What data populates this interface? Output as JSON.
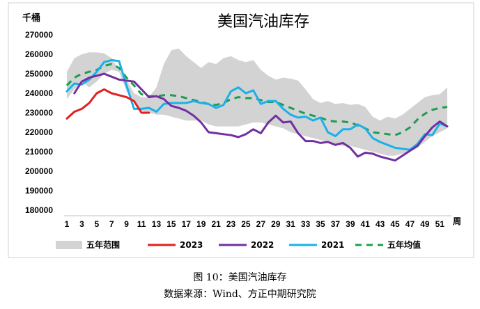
{
  "caption": {
    "figure": "图 10：美国汽油库存",
    "source": "数据来源：Wind、方正中期研究院"
  },
  "chart_data": {
    "type": "line",
    "title": "美国汽油库存",
    "ylabel": "千桶",
    "xlabel": "周",
    "ylim": [
      180000,
      270000
    ],
    "yticks": [
      180000,
      190000,
      200000,
      210000,
      220000,
      230000,
      240000,
      250000,
      260000,
      270000
    ],
    "xlim": [
      1,
      52
    ],
    "xticks": [
      1,
      3,
      5,
      7,
      9,
      11,
      13,
      15,
      17,
      19,
      21,
      23,
      25,
      27,
      29,
      31,
      33,
      35,
      37,
      39,
      41,
      43,
      45,
      47,
      49,
      51
    ],
    "legend_position": "bottom",
    "range_band": {
      "name": "五年范围",
      "color": "#d3d3d3",
      "x": [
        1,
        2,
        3,
        4,
        5,
        6,
        7,
        8,
        9,
        10,
        11,
        12,
        13,
        14,
        15,
        16,
        17,
        18,
        19,
        20,
        21,
        22,
        23,
        24,
        25,
        26,
        27,
        28,
        29,
        30,
        31,
        32,
        33,
        34,
        35,
        36,
        37,
        38,
        39,
        40,
        41,
        42,
        43,
        44,
        45,
        46,
        47,
        48,
        49,
        50,
        51,
        52
      ],
      "high": [
        251000,
        258000,
        260000,
        261000,
        261000,
        260500,
        258000,
        252000,
        247000,
        240000,
        238000,
        238000,
        243000,
        255000,
        262000,
        263000,
        259000,
        256000,
        253000,
        256000,
        255000,
        258000,
        259000,
        257000,
        256000,
        257000,
        252000,
        249000,
        247000,
        248000,
        247500,
        246500,
        242000,
        237000,
        235000,
        236000,
        234500,
        235000,
        234000,
        234500,
        233000,
        228000,
        226000,
        228000,
        227000,
        229000,
        232000,
        235000,
        238000,
        239000,
        239500,
        243000
      ],
      "low": [
        237000,
        242000,
        246000,
        243000,
        246000,
        250000,
        252000,
        251000,
        241000,
        236000,
        231000,
        230000,
        229000,
        229000,
        228000,
        227000,
        226000,
        226000,
        226000,
        224000,
        223000,
        223000,
        223000,
        223000,
        224000,
        225000,
        225000,
        224000,
        223000,
        222000,
        220000,
        219000,
        218000,
        217000,
        216000,
        215000,
        214000,
        213000,
        213000,
        212000,
        211000,
        210000,
        209000,
        208000,
        208000,
        209000,
        210000,
        212000,
        215000,
        218000,
        220000,
        222000
      ]
    },
    "series": [
      {
        "name": "2023",
        "color": "#e02020",
        "dash": false,
        "x": [
          1,
          2,
          3,
          4,
          5,
          6,
          7,
          8,
          9,
          10,
          11,
          12
        ],
        "values": [
          227000,
          230500,
          232000,
          235000,
          240000,
          242000,
          240000,
          239000,
          238000,
          236000,
          230000,
          230000
        ]
      },
      {
        "name": "2022",
        "color": "#7030a0",
        "dash": false,
        "x": [
          2,
          3,
          4,
          5,
          6,
          7,
          8,
          9,
          10,
          11,
          12,
          13,
          14,
          15,
          16,
          17,
          18,
          19,
          20,
          21,
          22,
          23,
          24,
          25,
          26,
          27,
          28,
          29,
          30,
          31,
          32,
          33,
          34,
          35,
          36,
          37,
          38,
          39,
          40,
          41,
          42,
          43,
          44,
          45,
          46,
          47,
          48,
          49,
          50,
          51,
          52
        ],
        "values": [
          240000,
          246000,
          248000,
          249000,
          250000,
          248500,
          247000,
          246500,
          246000,
          242000,
          238000,
          238500,
          237000,
          233500,
          232500,
          231000,
          228500,
          225000,
          220000,
          219500,
          219000,
          218500,
          217500,
          219000,
          221500,
          219500,
          225000,
          228500,
          225000,
          225500,
          219500,
          215500,
          215500,
          214500,
          215000,
          213500,
          214500,
          212000,
          207500,
          209500,
          209000,
          207500,
          206500,
          205500,
          208000,
          210500,
          213000,
          218000,
          222500,
          225500,
          223000
        ]
      },
      {
        "name": "2021",
        "color": "#1ab0ea",
        "dash": false,
        "x": [
          1,
          2,
          3,
          4,
          5,
          6,
          7,
          8,
          9,
          10,
          11,
          12,
          13,
          14,
          15,
          16,
          17,
          18,
          19,
          20,
          21,
          22,
          23,
          24,
          25,
          26,
          27,
          28,
          29,
          30,
          31,
          32,
          33,
          34,
          35,
          36,
          37,
          38,
          39,
          40,
          41,
          42,
          43,
          44,
          45,
          46,
          47,
          48,
          49,
          50,
          51,
          52
        ],
        "values": [
          241000,
          245000,
          244500,
          247000,
          251000,
          256000,
          257000,
          256500,
          244000,
          232000,
          232000,
          232500,
          230500,
          234500,
          235000,
          235000,
          235000,
          236000,
          235000,
          234500,
          232500,
          234000,
          241000,
          243000,
          240000,
          241500,
          234500,
          236000,
          236000,
          232000,
          229000,
          227500,
          228000,
          226000,
          227500,
          220000,
          218000,
          221500,
          221500,
          224000,
          222000,
          217000,
          215000,
          213500,
          212000,
          211500,
          211000,
          214000,
          219000,
          218500,
          224500,
          223000
        ]
      },
      {
        "name": "五年均值",
        "color": "#1a9e50",
        "dash": true,
        "x": [
          1,
          2,
          3,
          4,
          5,
          6,
          7,
          8,
          9,
          10,
          11,
          12,
          13,
          14,
          15,
          16,
          17,
          18,
          19,
          20,
          21,
          22,
          23,
          24,
          25,
          26,
          27,
          28,
          29,
          30,
          31,
          32,
          33,
          34,
          35,
          36,
          37,
          38,
          39,
          40,
          41,
          42,
          43,
          44,
          45,
          46,
          47,
          48,
          49,
          50,
          51,
          52
        ],
        "values": [
          244000,
          248000,
          250000,
          251000,
          252000,
          254000,
          255000,
          253000,
          248000,
          244000,
          239500,
          238500,
          238500,
          239000,
          239000,
          238500,
          237500,
          236500,
          235500,
          234500,
          234000,
          235000,
          237000,
          238000,
          237500,
          237500,
          236500,
          235500,
          235500,
          234000,
          232500,
          231000,
          229500,
          228500,
          227500,
          226000,
          225500,
          225500,
          225000,
          223500,
          222000,
          220000,
          219500,
          219000,
          218500,
          220000,
          222500,
          226500,
          229500,
          231500,
          232500,
          233000
        ]
      }
    ]
  }
}
